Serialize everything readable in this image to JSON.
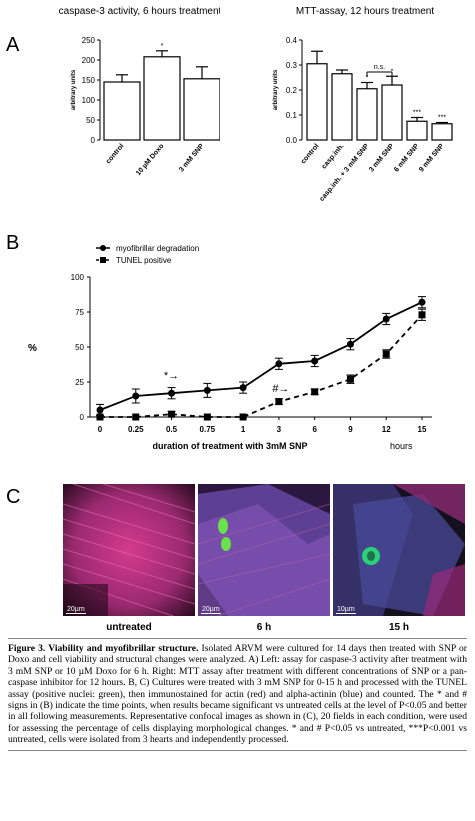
{
  "panels": {
    "a": "A",
    "b": "B",
    "c": "C"
  },
  "chart_data": [
    {
      "type": "bar",
      "title": "caspase-3 activity, 6 hours treatment",
      "ylabel": "arbitrary units",
      "ylim": [
        0,
        250
      ],
      "yticks": [
        "0",
        "50",
        "100",
        "150",
        "200",
        "250"
      ],
      "categories": [
        "control",
        "10 µM Doxo",
        "3 mM SNP"
      ],
      "values": [
        145,
        208,
        153
      ],
      "errors": [
        18,
        15,
        30
      ],
      "significance": [
        "",
        "*",
        ""
      ]
    },
    {
      "type": "bar",
      "title": "MTT-assay, 12 hours treatment",
      "ylabel": "arbitrary units",
      "ylim": [
        0,
        0.4
      ],
      "yticks": [
        "0.0",
        "0.1",
        "0.2",
        "0.3",
        "0.4"
      ],
      "categories": [
        "control",
        "casp.inh.",
        "casp.inh. + 3 mM SNP",
        "3 mM SNP",
        "6 mM SNP",
        "9 mM SNP"
      ],
      "values": [
        0.305,
        0.265,
        0.205,
        0.22,
        0.075,
        0.065
      ],
      "errors": [
        0.05,
        0.015,
        0.025,
        0.035,
        0.015,
        0.005
      ],
      "significance": [
        "",
        "",
        "*",
        "*",
        "***",
        "***"
      ],
      "bracket_label": "n.s."
    },
    {
      "type": "line",
      "ylabel": "%",
      "xlabel": "duration of treatment with 3mM SNP",
      "x_unit_label": "hours",
      "ylim": [
        0,
        100
      ],
      "yticks": [
        "0",
        "25",
        "50",
        "75",
        "100"
      ],
      "categories": [
        "0",
        "0.25",
        "0.5",
        "0.75",
        "1",
        "3",
        "6",
        "9",
        "12",
        "15"
      ],
      "series": [
        {
          "name": "myofibrillar degradation",
          "values": [
            5,
            15,
            17,
            19,
            21,
            38,
            40,
            52,
            70,
            82
          ],
          "errors": [
            4,
            5,
            4,
            5,
            4,
            4,
            4,
            4,
            4,
            4
          ]
        },
        {
          "name": "TUNEL positive",
          "values": [
            0,
            0,
            2,
            0,
            0,
            11,
            18,
            27,
            45,
            73
          ],
          "errors": [
            0,
            0,
            2,
            0,
            0,
            2,
            2,
            3,
            3,
            4
          ]
        }
      ],
      "annotations": [
        "*→",
        "#→"
      ]
    }
  ],
  "confocal": [
    {
      "label": "untreated",
      "scale": "20µm"
    },
    {
      "label": "6 h",
      "scale": "20µm"
    },
    {
      "label": "15 h",
      "scale": "10µm"
    }
  ],
  "caption": {
    "fig": "Figure 3. Viability and myofibrillar structure.",
    "text": " Isolated ARVM were cultured for 14 days then treated with SNP or Doxo and cell viability and structural changes were analyzed. A) Left: assay for caspase-3 activity after treatment with 3 mM SNP or 10 µM Doxo for 6 h. Right: MTT assay after treatment with different concentrations of SNP or a pan-caspase inhibitor for 12 hours. B, C) Cultures were treated with 3 mM SNP for 0-15 h and processed with the TUNEL assay (positive nuclei: green), then immunostained for actin (red) and alpha-actinin (blue) and counted. The * and # signs in (B) indicate the time points, when results became significant vs untreated cells at the level of P<0.05 and better in all following measurements. Representative confocal images as shown in (C), 20 fields in each condition, were used for assessing the percentage of cells displaying morphological changes. * and # P<0.05 vs untreated, ***P<0.001 vs untreated, cells were isolated from 3 hearts and independently processed."
  }
}
